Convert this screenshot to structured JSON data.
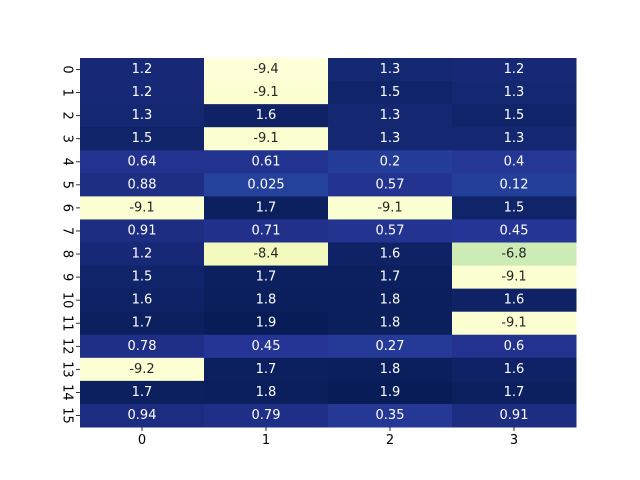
{
  "chart_data": {
    "type": "heatmap",
    "title": "",
    "xlabel": "",
    "ylabel": "",
    "x_tick_labels": [
      "0",
      "1",
      "2",
      "3"
    ],
    "y_tick_labels": [
      "0",
      "1",
      "2",
      "3",
      "4",
      "5",
      "6",
      "7",
      "8",
      "9",
      "10",
      "11",
      "12",
      "13",
      "14",
      "15"
    ],
    "values": [
      [
        1.2,
        -9.4,
        1.3,
        1.2
      ],
      [
        1.2,
        -9.1,
        1.5,
        1.3
      ],
      [
        1.3,
        1.6,
        1.3,
        1.5
      ],
      [
        1.5,
        -9.1,
        1.3,
        1.3
      ],
      [
        0.64,
        0.61,
        0.2,
        0.4
      ],
      [
        0.88,
        0.025,
        0.57,
        0.12
      ],
      [
        -9.1,
        1.7,
        -9.1,
        1.5
      ],
      [
        0.91,
        0.71,
        0.57,
        0.45
      ],
      [
        1.2,
        -8.4,
        1.6,
        -6.8
      ],
      [
        1.5,
        1.7,
        1.7,
        -9.1
      ],
      [
        1.6,
        1.8,
        1.8,
        1.6
      ],
      [
        1.7,
        1.9,
        1.8,
        -9.1
      ],
      [
        0.78,
        0.45,
        0.27,
        0.6
      ],
      [
        -9.2,
        1.7,
        1.8,
        1.6
      ],
      [
        1.7,
        1.8,
        1.9,
        1.7
      ],
      [
        0.94,
        0.79,
        0.35,
        0.91
      ]
    ],
    "colormap": "YlGnBu",
    "colorbar": false,
    "annotated": true
  }
}
